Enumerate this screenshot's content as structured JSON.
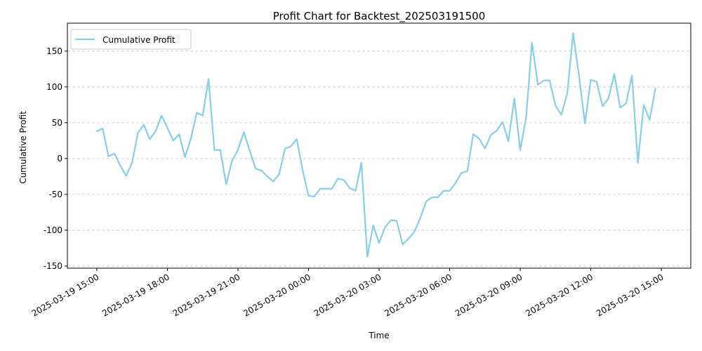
{
  "chart_data": {
    "type": "line",
    "title": "Profit Chart for Backtest_202503191500",
    "xlabel": "Time",
    "ylabel": "Cumulative Profit",
    "x_ticks": [
      "2025-03-19 15:00",
      "2025-03-19 18:00",
      "2025-03-19 21:00",
      "2025-03-20 00:00",
      "2025-03-20 03:00",
      "2025-03-20 06:00",
      "2025-03-20 09:00",
      "2025-03-20 12:00",
      "2025-03-20 15:00"
    ],
    "y_ticks": [
      -150,
      -100,
      -50,
      0,
      50,
      100,
      150
    ],
    "ylim": [
      -153,
      189
    ],
    "xlim": [
      "2025-03-19 13:45",
      "2025-03-20 16:15"
    ],
    "grid": "y-dashed",
    "legend": "upper-left",
    "series": [
      {
        "name": "Cumulative Profit",
        "color": "#87ceeb",
        "points": [
          [
            "2025-03-19 15:00",
            38
          ],
          [
            "2025-03-19 15:15",
            42
          ],
          [
            "2025-03-19 15:30",
            3
          ],
          [
            "2025-03-19 15:45",
            7
          ],
          [
            "2025-03-19 16:00",
            -10
          ],
          [
            "2025-03-19 16:15",
            -24
          ],
          [
            "2025-03-19 16:30",
            -6
          ],
          [
            "2025-03-19 16:45",
            36
          ],
          [
            "2025-03-19 17:00",
            47
          ],
          [
            "2025-03-19 17:15",
            27
          ],
          [
            "2025-03-19 17:30",
            38
          ],
          [
            "2025-03-19 17:45",
            60
          ],
          [
            "2025-03-19 18:00",
            43
          ],
          [
            "2025-03-19 18:15",
            25
          ],
          [
            "2025-03-19 18:30",
            34
          ],
          [
            "2025-03-19 18:45",
            2
          ],
          [
            "2025-03-19 19:00",
            28
          ],
          [
            "2025-03-19 19:15",
            64
          ],
          [
            "2025-03-19 19:30",
            60
          ],
          [
            "2025-03-19 19:45",
            111
          ],
          [
            "2025-03-19 20:00",
            12
          ],
          [
            "2025-03-19 20:15",
            12
          ],
          [
            "2025-03-19 20:30",
            -36
          ],
          [
            "2025-03-19 20:45",
            -3
          ],
          [
            "2025-03-19 21:00",
            12
          ],
          [
            "2025-03-19 21:15",
            37
          ],
          [
            "2025-03-19 21:30",
            11
          ],
          [
            "2025-03-19 21:45",
            -14
          ],
          [
            "2025-03-19 22:00",
            -17
          ],
          [
            "2025-03-19 22:15",
            -25
          ],
          [
            "2025-03-19 22:30",
            -32
          ],
          [
            "2025-03-19 22:45",
            -22
          ],
          [
            "2025-03-19 23:00",
            14
          ],
          [
            "2025-03-19 23:15",
            17
          ],
          [
            "2025-03-19 23:30",
            27
          ],
          [
            "2025-03-19 23:45",
            -16
          ],
          [
            "2025-03-20 00:00",
            -52
          ],
          [
            "2025-03-20 00:15",
            -53
          ],
          [
            "2025-03-20 00:30",
            -42
          ],
          [
            "2025-03-20 00:45",
            -42
          ],
          [
            "2025-03-20 01:00",
            -42
          ],
          [
            "2025-03-20 01:15",
            -28
          ],
          [
            "2025-03-20 01:30",
            -30
          ],
          [
            "2025-03-20 01:45",
            -41
          ],
          [
            "2025-03-20 02:00",
            -45
          ],
          [
            "2025-03-20 02:15",
            -6
          ],
          [
            "2025-03-20 02:30",
            -137
          ],
          [
            "2025-03-20 02:45",
            -93
          ],
          [
            "2025-03-20 03:00",
            -118
          ],
          [
            "2025-03-20 03:15",
            -96
          ],
          [
            "2025-03-20 03:30",
            -86
          ],
          [
            "2025-03-20 03:45",
            -87
          ],
          [
            "2025-03-20 04:00",
            -120
          ],
          [
            "2025-03-20 04:15",
            -112
          ],
          [
            "2025-03-20 04:30",
            -102
          ],
          [
            "2025-03-20 04:45",
            -83
          ],
          [
            "2025-03-20 05:00",
            -60
          ],
          [
            "2025-03-20 05:15",
            -54
          ],
          [
            "2025-03-20 05:30",
            -54
          ],
          [
            "2025-03-20 05:45",
            -45
          ],
          [
            "2025-03-20 06:00",
            -45
          ],
          [
            "2025-03-20 06:15",
            -34
          ],
          [
            "2025-03-20 06:30",
            -20
          ],
          [
            "2025-03-20 06:45",
            -18
          ],
          [
            "2025-03-20 07:00",
            34
          ],
          [
            "2025-03-20 07:15",
            28
          ],
          [
            "2025-03-20 07:30",
            14
          ],
          [
            "2025-03-20 07:45",
            33
          ],
          [
            "2025-03-20 08:00",
            39
          ],
          [
            "2025-03-20 08:15",
            51
          ],
          [
            "2025-03-20 08:30",
            24
          ],
          [
            "2025-03-20 08:45",
            84
          ],
          [
            "2025-03-20 09:00",
            12
          ],
          [
            "2025-03-20 09:15",
            57
          ],
          [
            "2025-03-20 09:30",
            162
          ],
          [
            "2025-03-20 09:45",
            103
          ],
          [
            "2025-03-20 10:00",
            109
          ],
          [
            "2025-03-20 10:15",
            109
          ],
          [
            "2025-03-20 10:30",
            74
          ],
          [
            "2025-03-20 10:45",
            61
          ],
          [
            "2025-03-20 11:00",
            91
          ],
          [
            "2025-03-20 11:15",
            175
          ],
          [
            "2025-03-20 11:30",
            115
          ],
          [
            "2025-03-20 11:45",
            49
          ],
          [
            "2025-03-20 12:00",
            110
          ],
          [
            "2025-03-20 12:15",
            107
          ],
          [
            "2025-03-20 12:30",
            73
          ],
          [
            "2025-03-20 12:45",
            84
          ],
          [
            "2025-03-20 13:00",
            118
          ],
          [
            "2025-03-20 13:15",
            71
          ],
          [
            "2025-03-20 13:30",
            77
          ],
          [
            "2025-03-20 13:45",
            116
          ],
          [
            "2025-03-20 14:00",
            -6
          ],
          [
            "2025-03-20 14:15",
            75
          ],
          [
            "2025-03-20 14:30",
            54
          ],
          [
            "2025-03-20 14:45",
            98
          ]
        ]
      }
    ]
  }
}
